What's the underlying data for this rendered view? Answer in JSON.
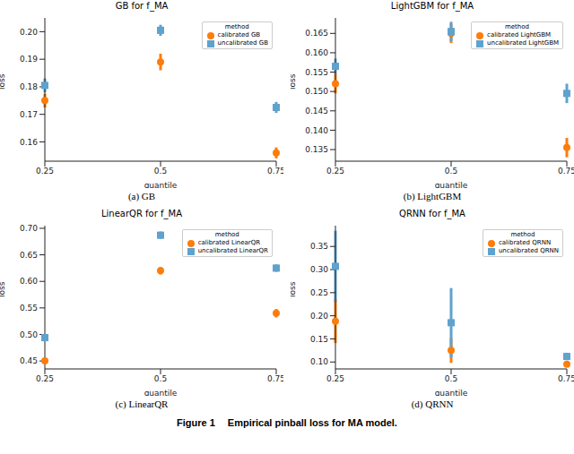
{
  "chart_data": [
    {
      "type": "scatter",
      "title": "GB for f_MA",
      "caption": "(a) GB",
      "x_label": "quantile",
      "y_label": "loss",
      "categories": [
        "0.25",
        "0.5",
        "0.75"
      ],
      "legend": "upper right",
      "legend_title": "method",
      "grid": false,
      "ylim": [
        0.153,
        0.205
      ],
      "yticks": [
        0.16,
        0.17,
        0.18,
        0.19,
        {
          "value": 0.2,
          "label": "0.20"
        }
      ],
      "series": [
        {
          "name": "calibrated GB",
          "color": "#fc7d0b",
          "marker": "circle",
          "values": [
            0.175,
            0.189,
            0.156
          ],
          "errors": [
            0.0025,
            0.003,
            0.002
          ]
        },
        {
          "name": "uncalibrated GB",
          "color": "#5fa2ce",
          "marker": "square",
          "values": [
            0.1805,
            0.2005,
            0.1725
          ],
          "errors": [
            0.0025,
            0.002,
            0.002
          ]
        }
      ]
    },
    {
      "type": "scatter",
      "title": "LightGBM for f_MA",
      "caption": "(b) LightGBM",
      "x_label": "quantile",
      "y_label": "loss",
      "categories": [
        "0.25",
        "0.5",
        "0.75"
      ],
      "legend": "upper right",
      "legend_title": "method",
      "grid": false,
      "ylim": [
        0.132,
        0.169
      ],
      "yticks": [
        0.135,
        {
          "value": 0.14,
          "label": "0.140"
        },
        0.145,
        {
          "value": 0.15,
          "label": "0.150"
        },
        0.155,
        {
          "value": 0.16,
          "label": "0.160"
        },
        0.165
      ],
      "series": [
        {
          "name": "calibrated LightGBM",
          "color": "#fc7d0b",
          "marker": "circle",
          "values": [
            0.152,
            0.165,
            0.1355
          ],
          "errors": [
            0.0025,
            0.0025,
            0.0025
          ]
        },
        {
          "name": "uncalibrated LightGBM",
          "color": "#5fa2ce",
          "marker": "square",
          "values": [
            0.1565,
            0.1655,
            0.1495
          ],
          "errors": [
            0.002,
            0.0025,
            0.0025
          ]
        }
      ]
    },
    {
      "type": "scatter",
      "title": "LinearQR for f_MA",
      "caption": "(c) LinearQR",
      "x_label": "quantile",
      "y_label": "loss",
      "categories": [
        "0.25",
        "0.5",
        "0.75"
      ],
      "legend": "upper right",
      "legend_title": "method",
      "grid": false,
      "ylim": [
        0.435,
        0.705
      ],
      "yticks": [
        0.45,
        {
          "value": 0.5,
          "label": "0.50"
        },
        0.55,
        {
          "value": 0.6,
          "label": "0.60"
        },
        0.65,
        {
          "value": 0.7,
          "label": "0.70"
        }
      ],
      "series": [
        {
          "name": "calibrated LinearQR",
          "color": "#fc7d0b",
          "marker": "circle",
          "values": [
            0.45,
            0.62,
            0.54
          ],
          "errors": [
            0.005,
            0.007,
            0.008
          ]
        },
        {
          "name": "uncalibrated LinearQR",
          "color": "#5fa2ce",
          "marker": "square",
          "values": [
            0.494,
            0.687,
            0.625
          ],
          "errors": [
            0.005,
            0.007,
            0.007
          ]
        }
      ]
    },
    {
      "type": "scatter",
      "title": "QRNN for f_MA",
      "caption": "(d) QRNN",
      "x_label": "quantile",
      "y_label": "loss",
      "categories": [
        "0.25",
        "0.5",
        "0.75"
      ],
      "legend": "upper right",
      "legend_title": "method",
      "grid": false,
      "ylim": [
        0.085,
        0.395
      ],
      "yticks": [
        {
          "value": 0.1,
          "label": "0.10"
        },
        0.15,
        {
          "value": 0.2,
          "label": "0.20"
        },
        0.25,
        {
          "value": 0.3,
          "label": "0.30"
        },
        0.35
      ],
      "series": [
        {
          "name": "calibrated QRNN",
          "color": "#fc7d0b",
          "marker": "circle",
          "values": [
            0.188,
            0.125,
            0.095
          ],
          "errors": [
            0.047,
            0.027,
            0.003
          ]
        },
        {
          "name": "uncalibrated QRNN",
          "color": "#5fa2ce",
          "marker": "square",
          "values": [
            0.307,
            0.185,
            0.112
          ],
          "errors": [
            0.077,
            0.075,
            0.008
          ]
        }
      ]
    }
  ],
  "caption": {
    "label": "Figure 1",
    "text": "Empirical pinball loss for MA model."
  }
}
